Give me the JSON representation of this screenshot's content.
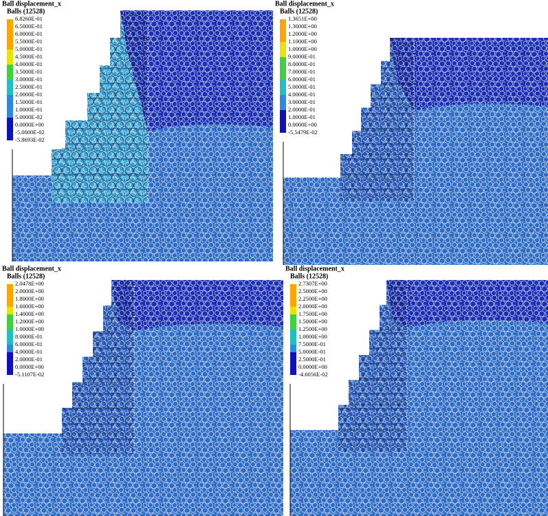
{
  "panels": [
    {
      "title": "Ball displacement_x",
      "subtitle": "Balls (12528)",
      "legend": [
        "6.8260E-01",
        "6.5000E-01",
        "6.0000E-01",
        "5.5000E-01",
        "5.0000E-01",
        "4.5000E-01",
        "4.0000E-01",
        "3.5000E-01",
        "3.0000E-01",
        "2.5000E-01",
        "2.0000E-01",
        "1.5000E-01",
        "1.0000E-01",
        "5.0000E-02",
        "0.0000E+00",
        "-5.0000E-02",
        "-5.8693E-02"
      ]
    },
    {
      "title": "Ball displacement_x",
      "subtitle": "Balls (12528)",
      "legend": [
        "1.3651E+00",
        "1.3000E+00",
        "1.2000E+00",
        "1.1000E+00",
        "1.0000E+00",
        "9.0000E-01",
        "8.0000E-01",
        "7.0000E-01",
        "6.0000E-01",
        "5.0000E-01",
        "4.0000E-01",
        "3.0000E-01",
        "2.0000E-01",
        "1.0000E-01",
        "0.0000E+00",
        "-5.5479E-02"
      ]
    },
    {
      "title": "Ball displacement_x",
      "subtitle": "Balls (12528)",
      "legend": [
        "2.0478E+00",
        "2.0000E+00",
        "1.8000E+00",
        "1.6000E+00",
        "1.4000E+00",
        "1.2000E+00",
        "1.0000E+00",
        "8.0000E-01",
        "6.0000E-01",
        "4.0000E-01",
        "2.0000E-01",
        "0.0000E+00",
        "-5.1107E-02"
      ]
    },
    {
      "title": "Ball displacement_x",
      "subtitle": "Balls (12528)",
      "legend": [
        "2.7307E+00",
        "2.5000E+00",
        "2.2500E+00",
        "2.0000E+00",
        "1.7500E+00",
        "1.5000E+00",
        "1.2500E+00",
        "1.0000E+00",
        "7.5000E-01",
        "5.0000E-01",
        "2.5000E-01",
        "0.0000E+00",
        "-4.6056E-02"
      ]
    }
  ]
}
